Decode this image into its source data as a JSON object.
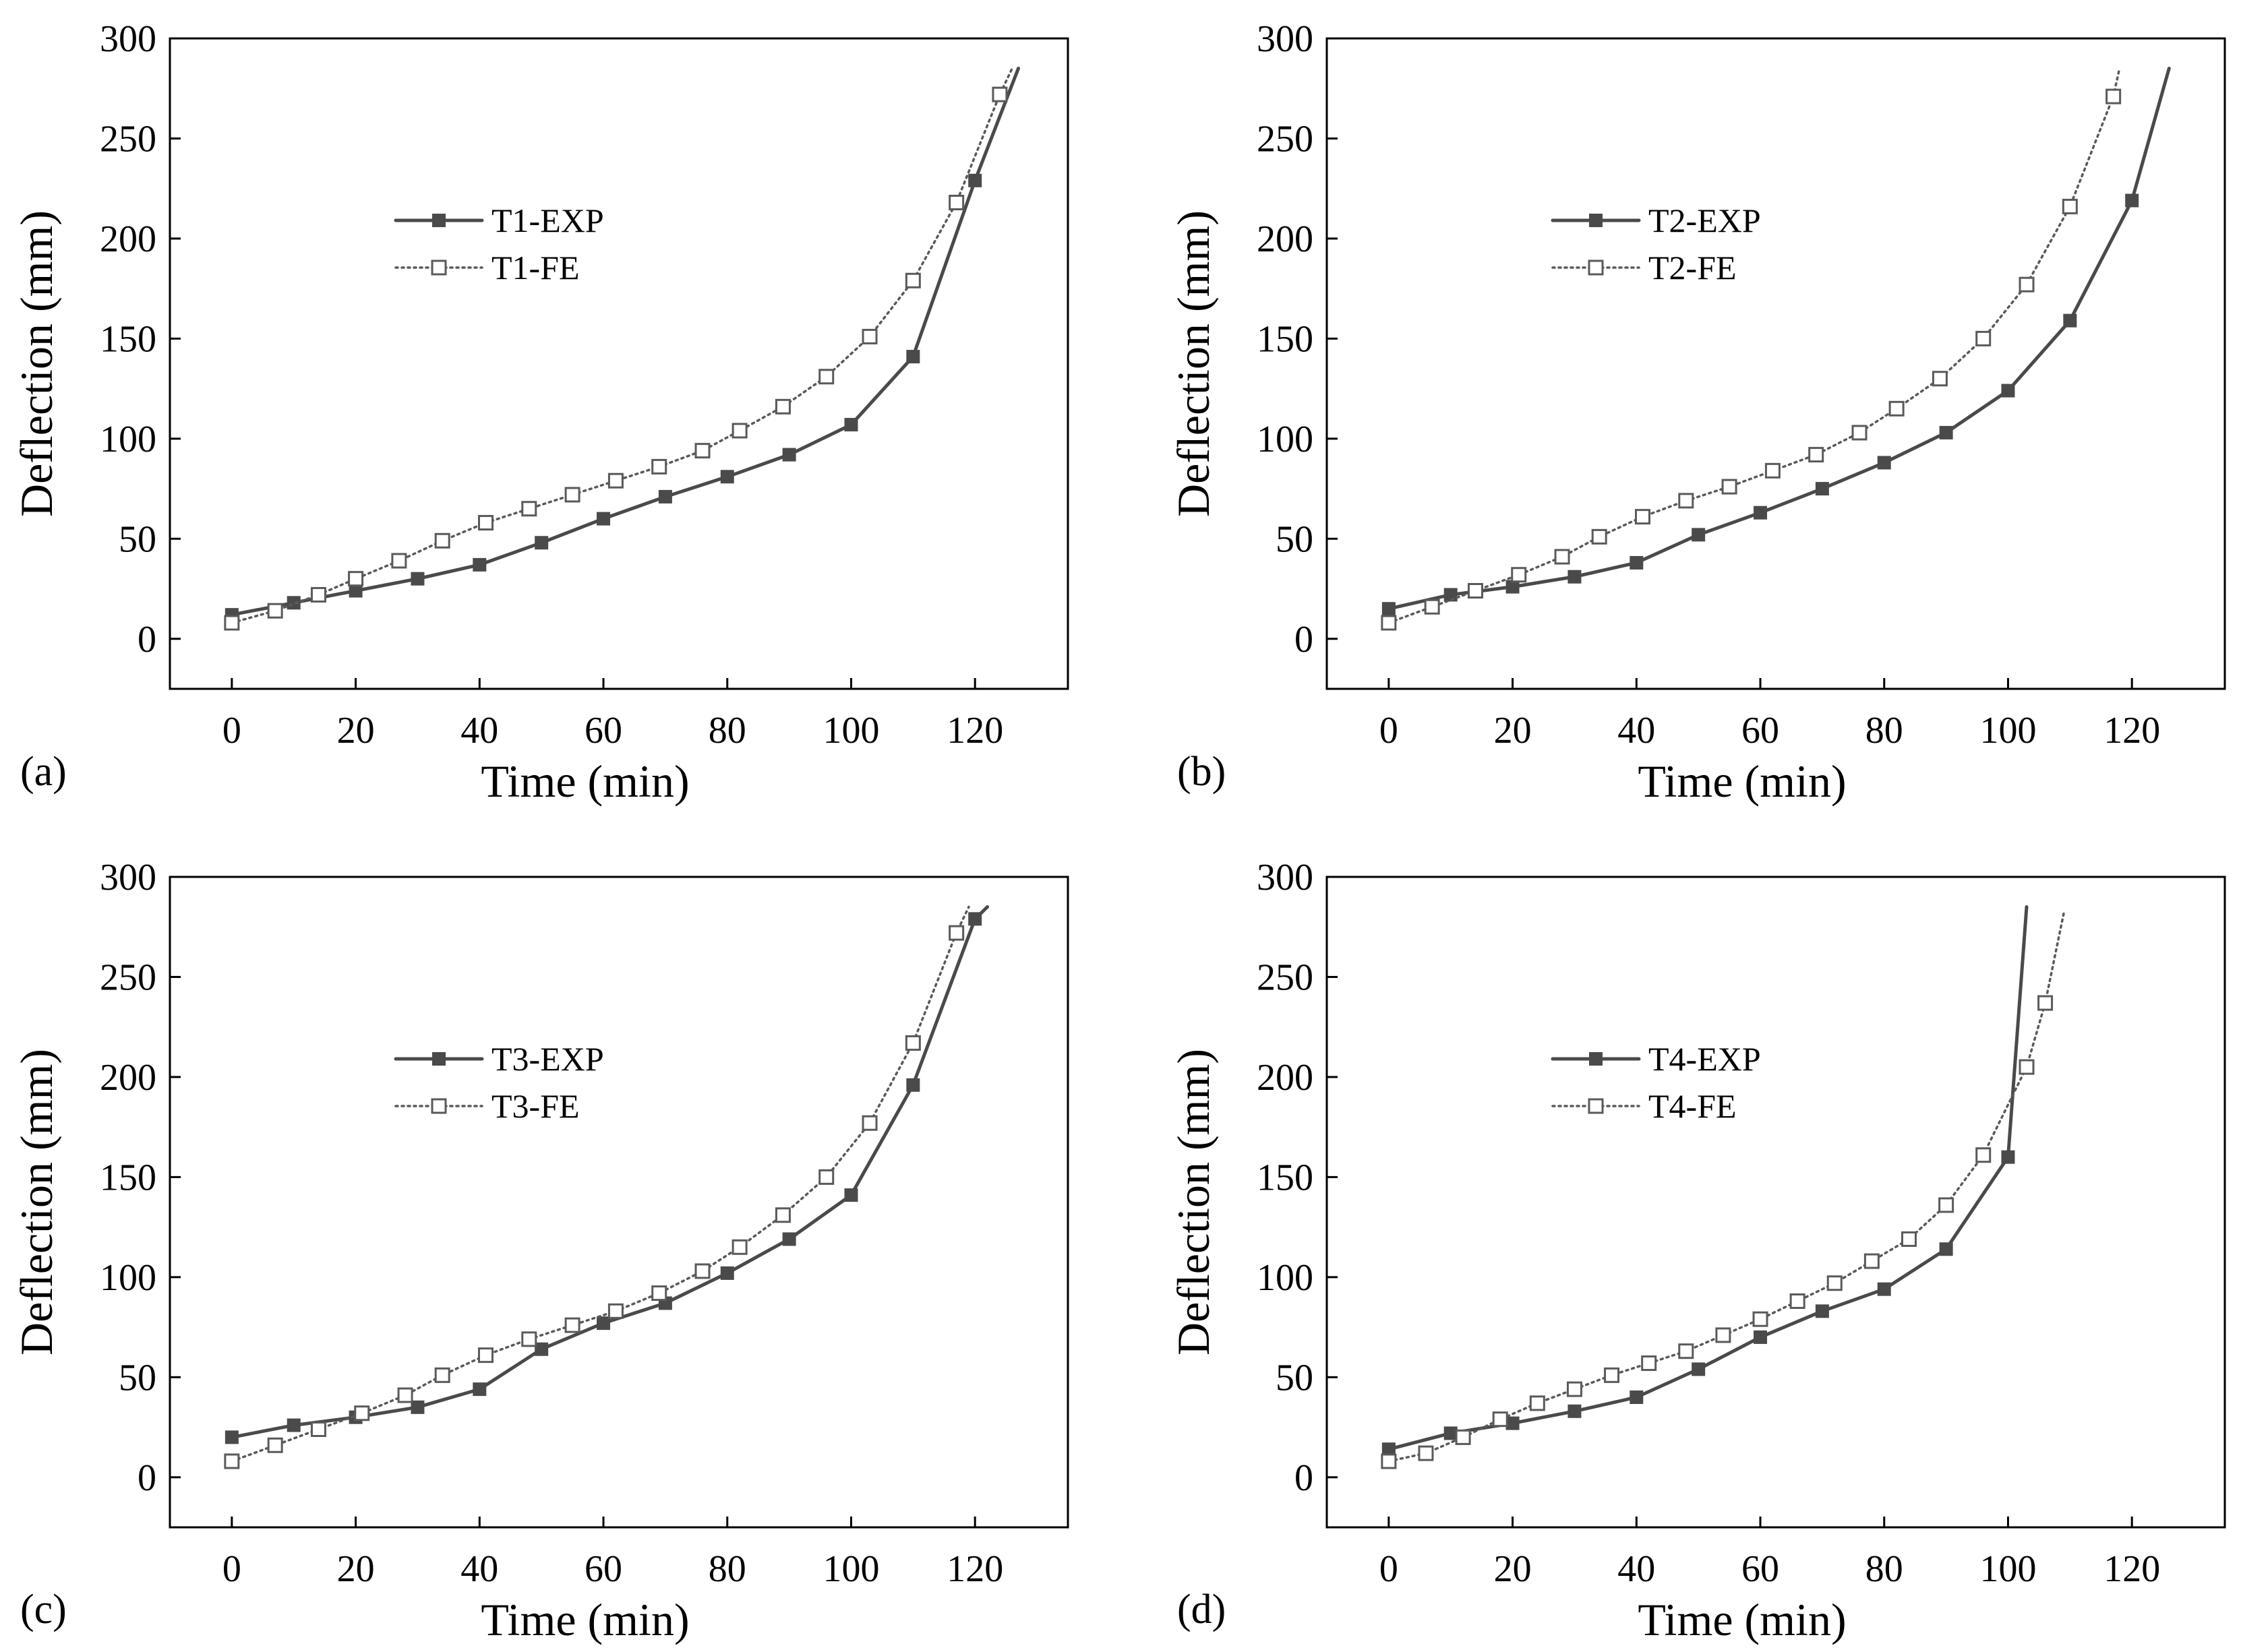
{
  "colors": {
    "exp": "#4a4a4a",
    "fe": "#5a5a5a",
    "axis": "#000000"
  },
  "chart_data": [
    {
      "panel_label": "(a)",
      "type": "line",
      "xlabel": "Time (min)",
      "ylabel": "Deflection (mm)",
      "xlim": [
        -10,
        135
      ],
      "ylim": [
        -25,
        300
      ],
      "xticks": [
        0,
        20,
        40,
        60,
        80,
        100,
        120
      ],
      "yticks": [
        0,
        50,
        100,
        150,
        200,
        250,
        300
      ],
      "legend_position": "upper-left",
      "series": [
        {
          "name": "T1-EXP",
          "style": "solid",
          "marker": "filled-square",
          "x": [
            0,
            10,
            20,
            30,
            40,
            50,
            60,
            70,
            80,
            90,
            100,
            110,
            120,
            127
          ],
          "y": [
            12,
            18,
            24,
            30,
            37,
            48,
            60,
            71,
            81,
            92,
            107,
            141,
            229,
            285
          ]
        },
        {
          "name": "T1-FE",
          "style": "dotted",
          "marker": "open-square",
          "x": [
            0,
            7,
            14,
            20,
            27,
            34,
            41,
            48,
            55,
            62,
            69,
            76,
            82,
            89,
            96,
            103,
            110,
            117,
            124,
            126
          ],
          "y": [
            8,
            14,
            22,
            30,
            39,
            49,
            58,
            65,
            72,
            79,
            86,
            94,
            104,
            116,
            131,
            151,
            179,
            218,
            272,
            285
          ]
        }
      ]
    },
    {
      "panel_label": "(b)",
      "type": "line",
      "xlabel": "Time (min)",
      "ylabel": "Deflection (mm)",
      "xlim": [
        -10,
        135
      ],
      "ylim": [
        -25,
        300
      ],
      "xticks": [
        0,
        20,
        40,
        60,
        80,
        100,
        120
      ],
      "yticks": [
        0,
        50,
        100,
        150,
        200,
        250,
        300
      ],
      "legend_position": "upper-left",
      "series": [
        {
          "name": "T2-EXP",
          "style": "solid",
          "marker": "filled-square",
          "x": [
            0,
            10,
            20,
            30,
            40,
            50,
            60,
            70,
            80,
            90,
            100,
            110,
            120,
            126
          ],
          "y": [
            15,
            22,
            26,
            31,
            38,
            52,
            63,
            75,
            88,
            103,
            124,
            159,
            219,
            285
          ]
        },
        {
          "name": "T2-FE",
          "style": "dotted",
          "marker": "open-square",
          "x": [
            0,
            7,
            14,
            21,
            28,
            34,
            41,
            48,
            55,
            62,
            69,
            76,
            82,
            89,
            96,
            103,
            110,
            117,
            118
          ],
          "y": [
            8,
            16,
            24,
            32,
            41,
            51,
            61,
            69,
            76,
            84,
            92,
            103,
            115,
            130,
            150,
            177,
            216,
            271,
            285
          ]
        }
      ]
    },
    {
      "panel_label": "(c)",
      "type": "line",
      "xlabel": "Time (min)",
      "ylabel": "Deflection (mm)",
      "xlim": [
        -10,
        135
      ],
      "ylim": [
        -25,
        300
      ],
      "xticks": [
        0,
        20,
        40,
        60,
        80,
        100,
        120
      ],
      "yticks": [
        0,
        50,
        100,
        150,
        200,
        250,
        300
      ],
      "legend_position": "upper-left",
      "series": [
        {
          "name": "T3-EXP",
          "style": "solid",
          "marker": "filled-square",
          "x": [
            0,
            10,
            20,
            30,
            40,
            50,
            60,
            70,
            80,
            90,
            100,
            110,
            120,
            122
          ],
          "y": [
            20,
            26,
            30,
            35,
            44,
            64,
            77,
            87,
            102,
            119,
            141,
            196,
            279,
            285
          ]
        },
        {
          "name": "T3-FE",
          "style": "dotted",
          "marker": "open-square",
          "x": [
            0,
            7,
            14,
            21,
            28,
            34,
            41,
            48,
            55,
            62,
            69,
            76,
            82,
            89,
            96,
            103,
            110,
            117,
            119
          ],
          "y": [
            8,
            16,
            24,
            32,
            41,
            51,
            61,
            69,
            76,
            83,
            92,
            103,
            115,
            131,
            150,
            177,
            217,
            272,
            285
          ]
        }
      ]
    },
    {
      "panel_label": "(d)",
      "type": "line",
      "xlabel": "Time (min)",
      "ylabel": "Deflection (mm)",
      "xlim": [
        -10,
        135
      ],
      "ylim": [
        -25,
        300
      ],
      "xticks": [
        0,
        20,
        40,
        60,
        80,
        100,
        120
      ],
      "yticks": [
        0,
        50,
        100,
        150,
        200,
        250,
        300
      ],
      "legend_position": "upper-left",
      "series": [
        {
          "name": "T4-EXP",
          "style": "solid",
          "marker": "filled-square",
          "x": [
            0,
            10,
            20,
            30,
            40,
            50,
            60,
            70,
            80,
            90,
            100,
            103
          ],
          "y": [
            14,
            22,
            27,
            33,
            40,
            54,
            70,
            83,
            94,
            114,
            160,
            285
          ]
        },
        {
          "name": "T4-FE",
          "style": "dotted",
          "marker": "open-square",
          "x": [
            0,
            6,
            12,
            18,
            24,
            30,
            36,
            42,
            48,
            54,
            60,
            66,
            72,
            78,
            84,
            90,
            96,
            103,
            106,
            109
          ],
          "y": [
            8,
            12,
            20,
            29,
            37,
            44,
            51,
            57,
            63,
            71,
            79,
            88,
            97,
            108,
            119,
            136,
            161,
            205,
            237,
            282
          ]
        }
      ]
    }
  ]
}
